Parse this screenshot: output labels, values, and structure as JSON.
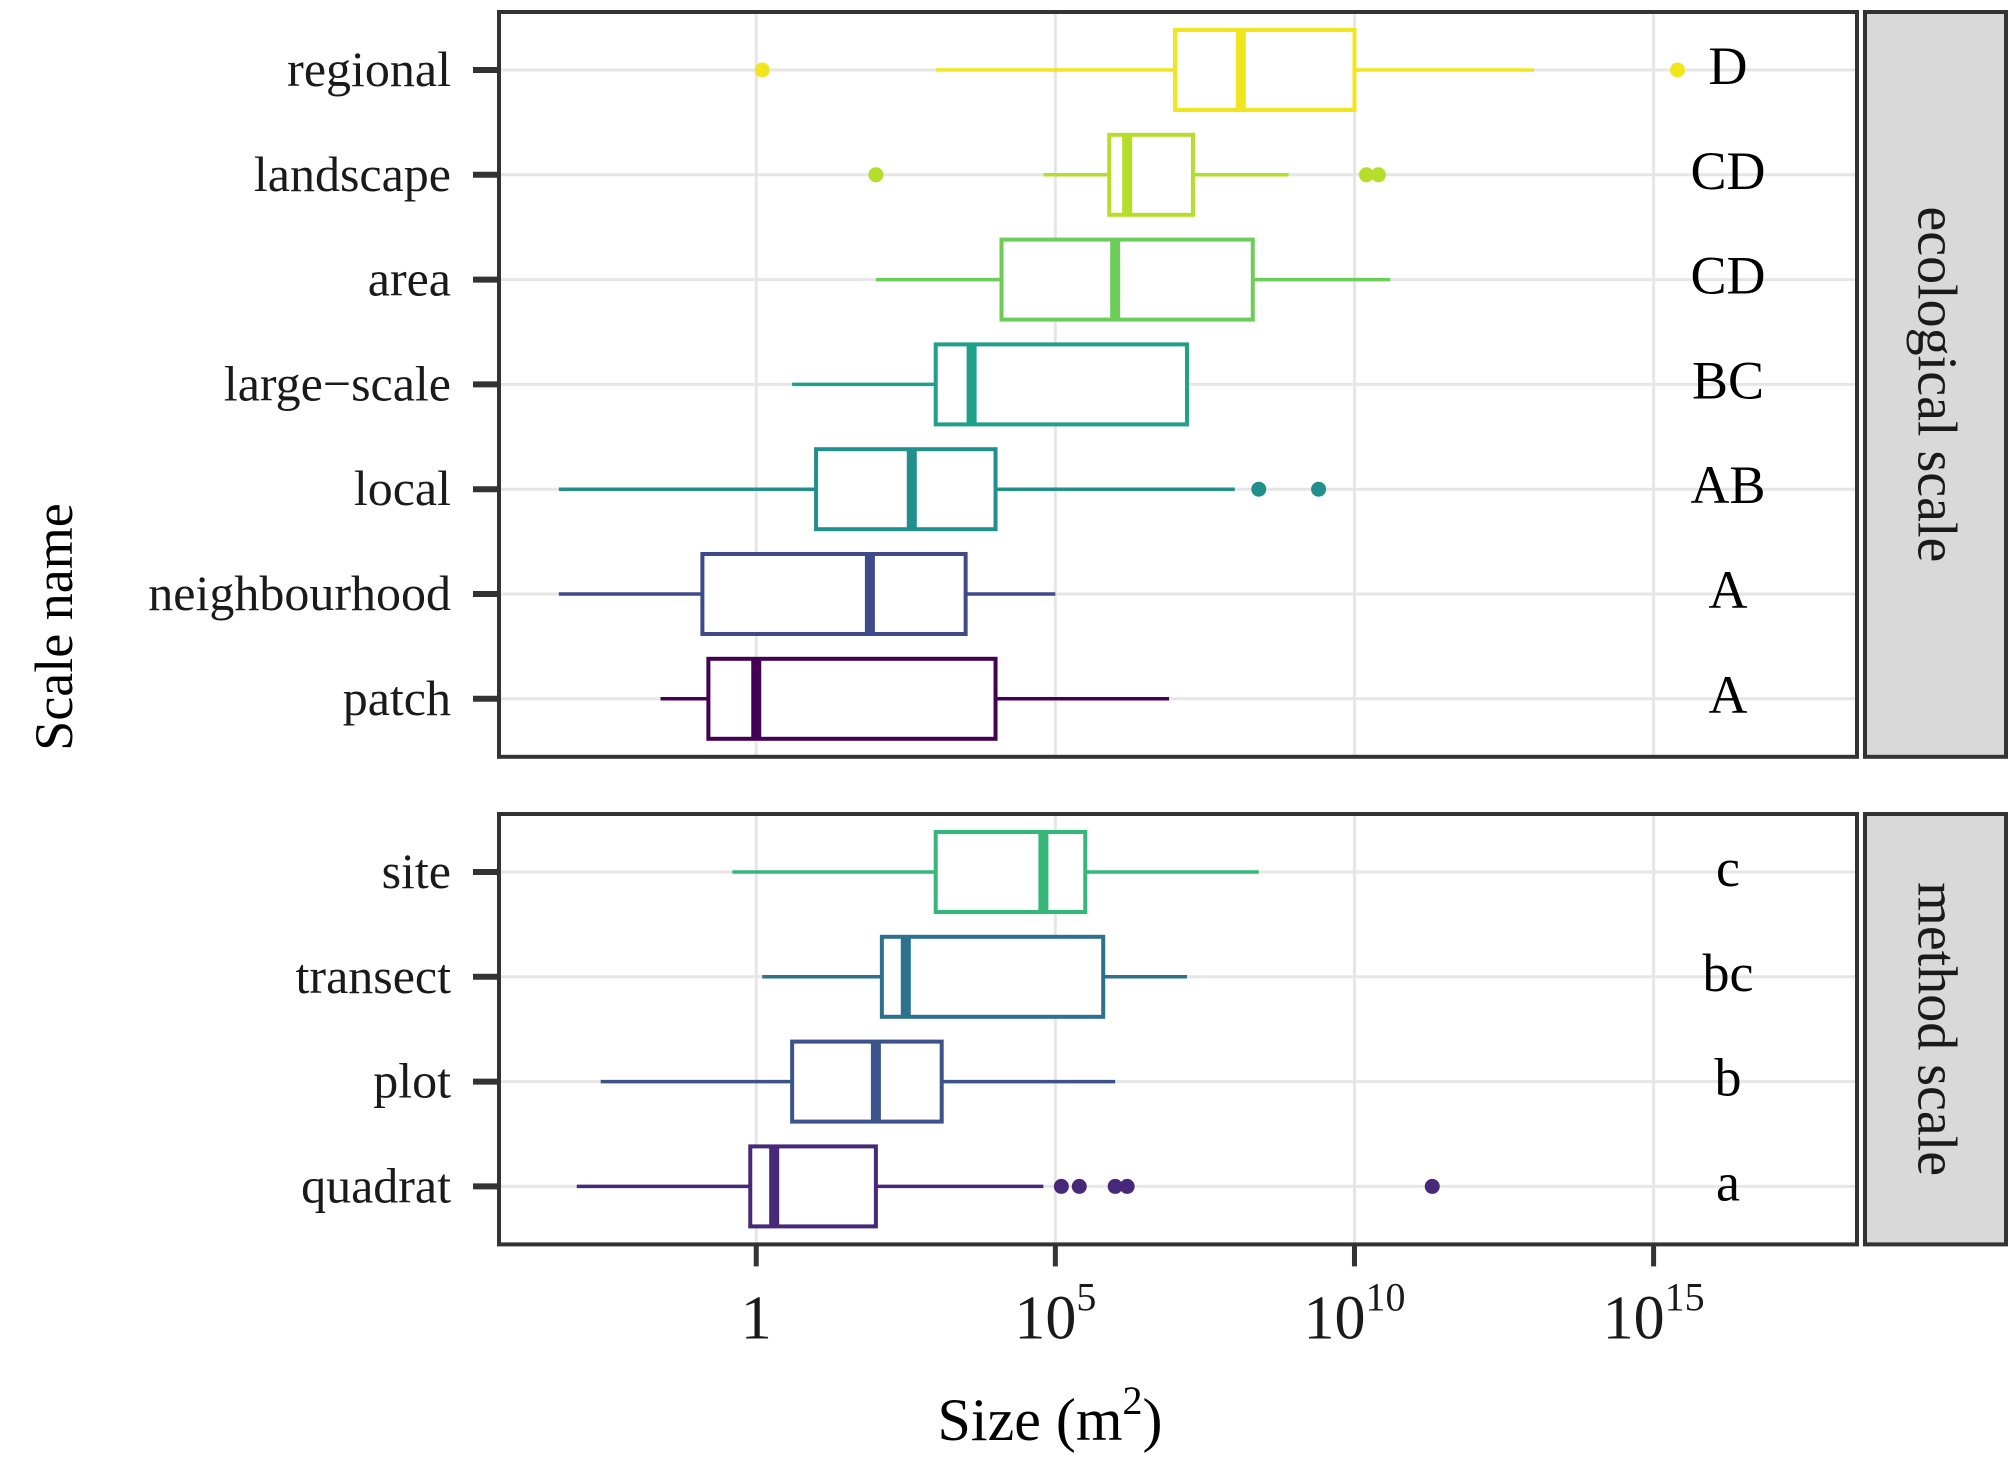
{
  "chart_data": {
    "type": "boxplot",
    "orientation": "horizontal",
    "xlabel": "Size (m",
    "xlabel_superscript": "2",
    "xlabel_close": ")",
    "ylabel": "Scale name",
    "x_scale": "log10",
    "xlim_log10": [
      -4.3,
      18.4
    ],
    "x_ticks": [
      {
        "log10": 0,
        "base": "1",
        "exp": ""
      },
      {
        "log10": 5,
        "base": "10",
        "exp": "5"
      },
      {
        "log10": 10,
        "base": "10",
        "exp": "10"
      },
      {
        "log10": 15,
        "base": "10",
        "exp": "15"
      }
    ],
    "panels": [
      {
        "strip_label": "ecological scale",
        "groups": [
          {
            "name": "regional",
            "color": "#F1E51D",
            "letter": "D",
            "whisker_low": 3,
            "q1": 7,
            "median": 8.1,
            "q3": 10,
            "whisker_high": 13,
            "outliers": [
              0.1,
              15.4
            ]
          },
          {
            "name": "landscape",
            "color": "#B5DE2B",
            "letter": "CD",
            "whisker_low": 4.8,
            "q1": 5.9,
            "median": 6.2,
            "q3": 7.3,
            "whisker_high": 8.9,
            "outliers": [
              2,
              10.2,
              10.4
            ]
          },
          {
            "name": "area",
            "color": "#6CCE59",
            "letter": "CD",
            "whisker_low": 2,
            "q1": 4.1,
            "median": 6,
            "q3": 8.3,
            "whisker_high": 10.6,
            "outliers": []
          },
          {
            "name": "large−scale",
            "color": "#1FA088",
            "letter": "BC",
            "whisker_low": 0.6,
            "q1": 3,
            "median": 3.6,
            "q3": 7.2,
            "whisker_high": null,
            "outliers": []
          },
          {
            "name": "local",
            "color": "#21908C",
            "letter": "AB",
            "whisker_low": -3.3,
            "q1": 1,
            "median": 2.6,
            "q3": 4,
            "whisker_high": 8,
            "outliers": [
              8.4,
              9.4
            ]
          },
          {
            "name": "neighbourhood",
            "color": "#3E4A89",
            "letter": "A",
            "whisker_low": -3.3,
            "q1": -0.9,
            "median": 1.9,
            "q3": 3.5,
            "whisker_high": 5,
            "outliers": []
          },
          {
            "name": "patch",
            "color": "#440154",
            "letter": "A",
            "whisker_low": -1.6,
            "q1": -0.8,
            "median": 0,
            "q3": 4,
            "whisker_high": 6.9,
            "outliers": []
          }
        ]
      },
      {
        "strip_label": "method scale",
        "groups": [
          {
            "name": "site",
            "color": "#35B779",
            "letter": "c",
            "whisker_low": -0.4,
            "q1": 3,
            "median": 4.8,
            "q3": 5.5,
            "whisker_high": 8.4,
            "outliers": []
          },
          {
            "name": "transect",
            "color": "#2C728E",
            "letter": "bc",
            "whisker_low": 0.1,
            "q1": 2.1,
            "median": 2.5,
            "q3": 5.8,
            "whisker_high": 7.2,
            "outliers": []
          },
          {
            "name": "plot",
            "color": "#3B528B",
            "letter": "b",
            "whisker_low": -2.6,
            "q1": 0.6,
            "median": 2,
            "q3": 3.1,
            "whisker_high": 6,
            "outliers": []
          },
          {
            "name": "quadrat",
            "color": "#482878",
            "letter": "a",
            "whisker_low": -3,
            "q1": -0.1,
            "median": 0.3,
            "q3": 2,
            "whisker_high": 4.8,
            "outliers": [
              5.1,
              5.4,
              6,
              6.2,
              11.3
            ]
          }
        ]
      }
    ]
  }
}
